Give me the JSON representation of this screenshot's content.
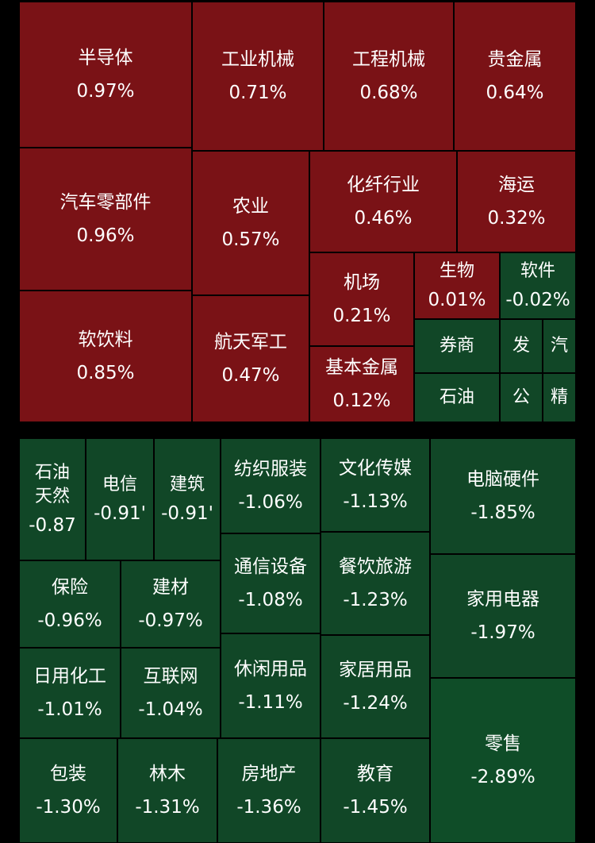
{
  "colors": {
    "up": "#7a1216",
    "down": "#114727",
    "down_strong": "#0f4d28",
    "background": "#000000"
  },
  "chart_data": {
    "type": "treemap",
    "groups": [
      {
        "name": "",
        "items": [
          {
            "name": "半导体",
            "value_label": "0.97%",
            "value": 0.97
          },
          {
            "name": "工业机械",
            "value_label": "0.71%",
            "value": 0.71
          },
          {
            "name": "工程机械",
            "value_label": "0.68%",
            "value": 0.68
          },
          {
            "name": "贵金属",
            "value_label": "0.64%",
            "value": 0.64
          },
          {
            "name": "汽车零部件",
            "value_label": "0.96%",
            "value": 0.96
          },
          {
            "name": "农业",
            "value_label": "0.57%",
            "value": 0.57
          },
          {
            "name": "化纤行业",
            "value_label": "0.46%",
            "value": 0.46
          },
          {
            "name": "海运",
            "value_label": "0.32%",
            "value": 0.32
          },
          {
            "name": "软饮料",
            "value_label": "0.85%",
            "value": 0.85
          },
          {
            "name": "航天军工",
            "value_label": "0.47%",
            "value": 0.47
          },
          {
            "name": "机场",
            "value_label": "0.21%",
            "value": 0.21
          },
          {
            "name": "基本金属",
            "value_label": "0.12%",
            "value": 0.12
          },
          {
            "name": "生物",
            "value_label": "0.01%",
            "value": 0.01
          },
          {
            "name": "软件",
            "value_label": "-0.02%",
            "value": -0.02
          },
          {
            "name": "券商",
            "value_label": "",
            "value": null
          },
          {
            "name": "石油",
            "value_label": "",
            "value": null
          },
          {
            "name": "发",
            "value_label": "",
            "value": null
          },
          {
            "name": "汽",
            "value_label": "",
            "value": null
          },
          {
            "name": "公",
            "value_label": "",
            "value": null
          },
          {
            "name": "精",
            "value_label": "",
            "value": null
          }
        ]
      },
      {
        "name": "",
        "items": [
          {
            "name": "石油\n天然",
            "value_label": "-0.87",
            "value": -0.87
          },
          {
            "name": "电信",
            "value_label": "-0.91'",
            "value": -0.91
          },
          {
            "name": "建筑",
            "value_label": "-0.91'",
            "value": -0.91
          },
          {
            "name": "纺织服装",
            "value_label": "-1.06%",
            "value": -1.06
          },
          {
            "name": "文化传媒",
            "value_label": "-1.13%",
            "value": -1.13
          },
          {
            "name": "电脑硬件",
            "value_label": "-1.85%",
            "value": -1.85
          },
          {
            "name": "保险",
            "value_label": "-0.96%",
            "value": -0.96
          },
          {
            "name": "建材",
            "value_label": "-0.97%",
            "value": -0.97
          },
          {
            "name": "通信设备",
            "value_label": "-1.08%",
            "value": -1.08
          },
          {
            "name": "餐饮旅游",
            "value_label": "-1.23%",
            "value": -1.23
          },
          {
            "name": "家用电器",
            "value_label": "-1.97%",
            "value": -1.97
          },
          {
            "name": "日用化工",
            "value_label": "-1.01%",
            "value": -1.01
          },
          {
            "name": "互联网",
            "value_label": "-1.04%",
            "value": -1.04
          },
          {
            "name": "休闲用品",
            "value_label": "-1.11%",
            "value": -1.11
          },
          {
            "name": "家居用品",
            "value_label": "-1.24%",
            "value": -1.24
          },
          {
            "name": "零售",
            "value_label": "-2.89%",
            "value": -2.89
          },
          {
            "name": "包装",
            "value_label": "-1.30%",
            "value": -1.3
          },
          {
            "name": "林木",
            "value_label": "-1.31%",
            "value": -1.31
          },
          {
            "name": "房地产",
            "value_label": "-1.36%",
            "value": -1.36
          },
          {
            "name": "教育",
            "value_label": "-1.45%",
            "value": -1.45
          }
        ]
      }
    ]
  }
}
